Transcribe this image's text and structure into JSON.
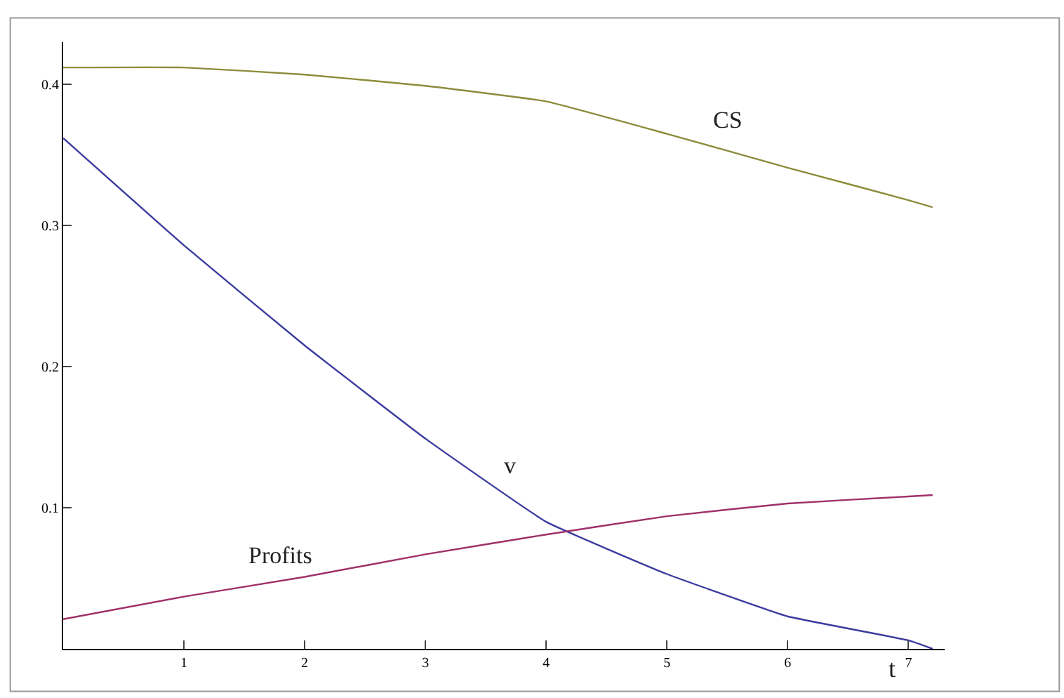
{
  "chart_data": {
    "type": "line",
    "xlabel": "t",
    "x": [
      0,
      1,
      2,
      3,
      4,
      5,
      6,
      7,
      7.2
    ],
    "series": [
      {
        "name": "CS",
        "color": "#8c8c3c",
        "values": [
          0.412,
          0.412,
          0.407,
          0.399,
          0.388,
          0.365,
          0.341,
          0.318,
          0.313
        ]
      },
      {
        "name": "v",
        "color": "#3c3ca0",
        "values": [
          0.362,
          0.286,
          0.215,
          0.149,
          0.09,
          0.053,
          0.023,
          0.006,
          0.0
        ]
      },
      {
        "name": "Profits",
        "color": "#a0306a",
        "values": [
          0.021,
          0.037,
          0.051,
          0.067,
          0.081,
          0.094,
          0.103,
          0.108,
          0.109
        ]
      }
    ],
    "xlim": [
      0,
      7.3
    ],
    "ylim": [
      0,
      0.43
    ],
    "xticks": [
      1,
      2,
      3,
      4,
      5,
      6,
      7
    ],
    "yticks": [
      0.1,
      0.2,
      0.3,
      0.4
    ],
    "legend": false,
    "marker": "none",
    "line_style": "solid"
  }
}
